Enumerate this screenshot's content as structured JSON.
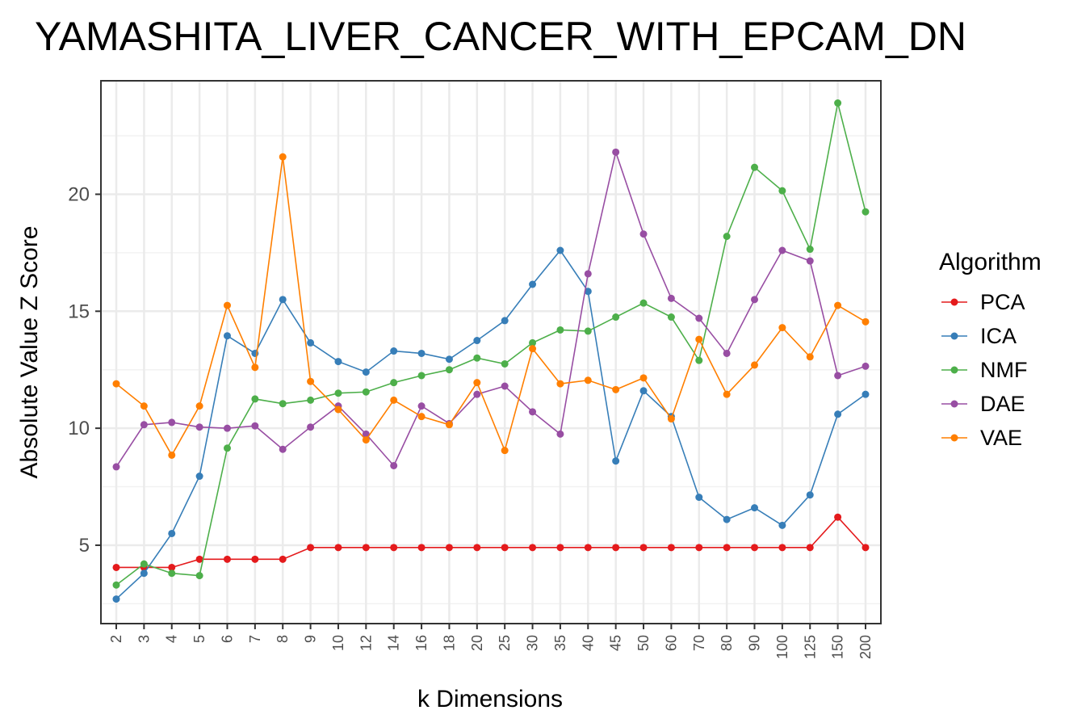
{
  "chart_data": {
    "type": "line",
    "title": "YAMASHITA_LIVER_CANCER_WITH_EPCAM_DN",
    "xlabel": "k Dimensions",
    "ylabel": "Absolute Value Z Score",
    "categories": [
      "2",
      "3",
      "4",
      "5",
      "6",
      "7",
      "8",
      "9",
      "10",
      "12",
      "14",
      "16",
      "18",
      "20",
      "25",
      "30",
      "35",
      "40",
      "45",
      "50",
      "60",
      "70",
      "80",
      "90",
      "100",
      "125",
      "150",
      "200"
    ],
    "yticks": [
      5,
      10,
      15,
      20
    ],
    "ylim": [
      1.65,
      24.85
    ],
    "grid": true,
    "legend": {
      "title": "Algorithm",
      "position": "right"
    },
    "series": [
      {
        "name": "PCA",
        "color": "#E41A1C",
        "values": [
          4.05,
          4.05,
          4.05,
          4.4,
          4.4,
          4.4,
          4.4,
          4.9,
          4.9,
          4.9,
          4.9,
          4.9,
          4.9,
          4.9,
          4.9,
          4.9,
          4.9,
          4.9,
          4.9,
          4.9,
          4.9,
          4.9,
          4.9,
          4.9,
          4.9,
          4.9,
          6.2,
          4.9
        ]
      },
      {
        "name": "ICA",
        "color": "#377EB8",
        "values": [
          2.7,
          3.8,
          5.5,
          7.95,
          13.95,
          13.2,
          15.5,
          13.65,
          12.85,
          12.4,
          13.3,
          13.2,
          12.95,
          13.75,
          14.6,
          16.15,
          17.6,
          15.85,
          8.6,
          11.6,
          10.5,
          7.05,
          6.1,
          6.6,
          5.85,
          7.15,
          10.6,
          11.45
        ]
      },
      {
        "name": "NMF",
        "color": "#4DAF4A",
        "values": [
          3.3,
          4.2,
          3.8,
          3.7,
          9.15,
          11.25,
          11.05,
          11.2,
          11.5,
          11.55,
          11.95,
          12.25,
          12.5,
          13.0,
          12.75,
          13.65,
          14.2,
          14.15,
          14.75,
          15.35,
          14.75,
          12.9,
          18.2,
          21.15,
          20.15,
          17.65,
          23.9,
          19.25
        ]
      },
      {
        "name": "DAE",
        "color": "#984EA3",
        "values": [
          8.35,
          10.15,
          10.25,
          10.05,
          10.0,
          10.1,
          9.1,
          10.05,
          10.95,
          9.75,
          8.4,
          10.95,
          10.2,
          11.45,
          11.8,
          10.7,
          9.75,
          16.6,
          21.8,
          18.3,
          15.55,
          14.7,
          13.2,
          15.5,
          17.6,
          17.15,
          12.25,
          12.65
        ]
      },
      {
        "name": "VAE",
        "color": "#FF7F00",
        "values": [
          11.9,
          10.95,
          8.85,
          10.95,
          15.25,
          12.6,
          21.6,
          12.0,
          10.8,
          9.5,
          11.2,
          10.5,
          10.15,
          11.95,
          9.05,
          13.4,
          11.9,
          12.05,
          11.65,
          12.15,
          10.4,
          13.8,
          11.45,
          12.7,
          14.3,
          13.05,
          15.25,
          14.55
        ]
      }
    ]
  }
}
